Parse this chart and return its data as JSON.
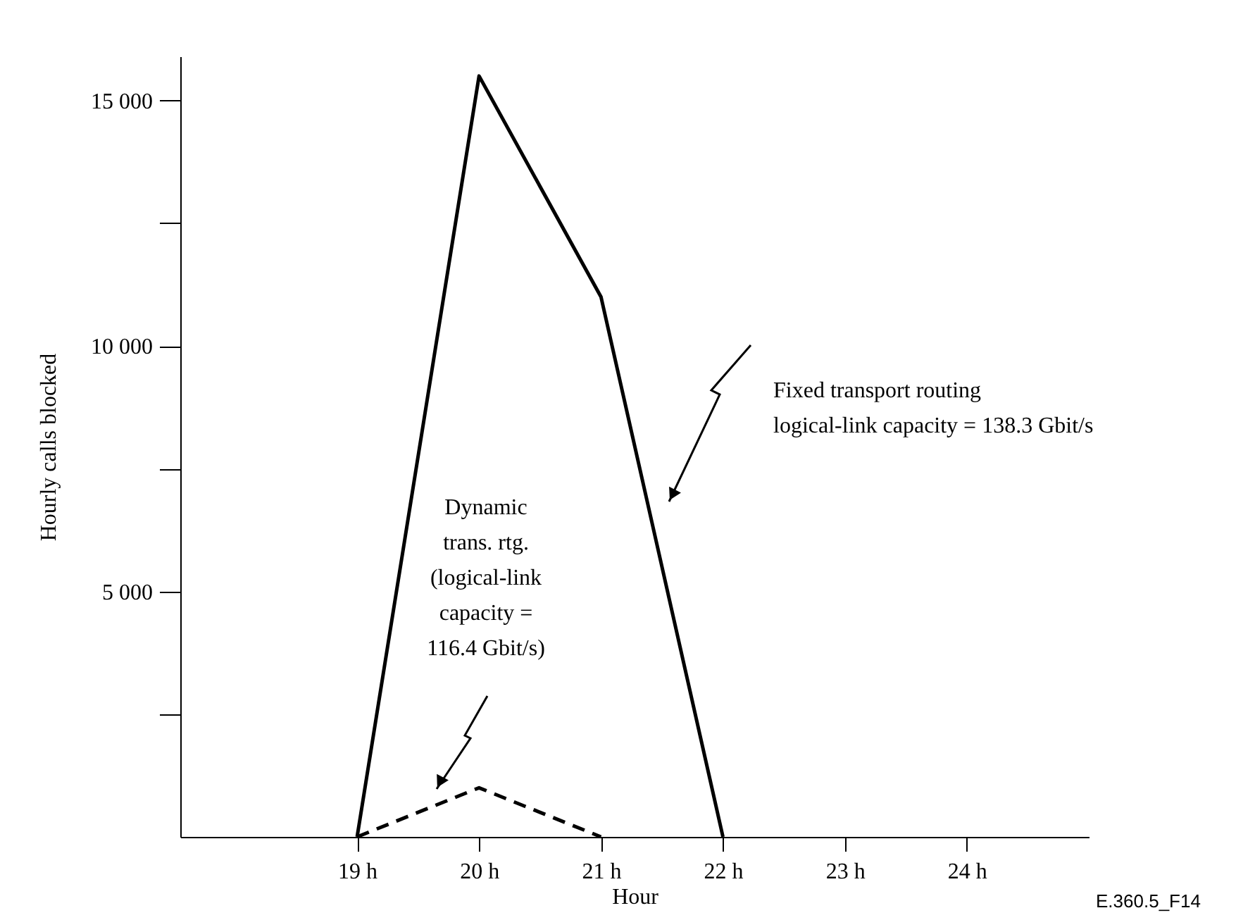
{
  "chart_data": {
    "type": "line",
    "xlabel": "Hour",
    "ylabel": "Hourly calls blocked",
    "xlim": [
      17.55,
      25
    ],
    "ylim": [
      0,
      15900
    ],
    "xticks": [
      {
        "value": 19,
        "label": "19 h"
      },
      {
        "value": 20,
        "label": "20 h"
      },
      {
        "value": 21,
        "label": "21 h"
      },
      {
        "value": 22,
        "label": "22 h"
      },
      {
        "value": 23,
        "label": "23 h"
      },
      {
        "value": 24,
        "label": "24 h"
      }
    ],
    "yticks": [
      {
        "value": 2500,
        "label": null
      },
      {
        "value": 5000,
        "label": "5 000"
      },
      {
        "value": 7500,
        "label": null
      },
      {
        "value": 10000,
        "label": "10 000"
      },
      {
        "value": 12500,
        "label": null
      },
      {
        "value": 15000,
        "label": "15 000"
      }
    ],
    "series": [
      {
        "color": "#000000",
        "line_style": "solid",
        "x": [
          19,
          20,
          21,
          22
        ],
        "values": [
          0,
          15500,
          11000,
          0
        ]
      },
      {
        "color": "#000000",
        "line_style": "dashed",
        "x": [
          19,
          20,
          21
        ],
        "values": [
          0,
          1000,
          0
        ]
      }
    ],
    "annotations": [
      "Fixed transport routing\nlogical-link capacity = 138.3 Gbit/s",
      "Dynamic\ntrans. rtg.\n(logical-link\ncapacity =\n116.4 Gbit/s)",
      "E.360.5_F14"
    ],
    "grid": false,
    "marker": "none"
  }
}
